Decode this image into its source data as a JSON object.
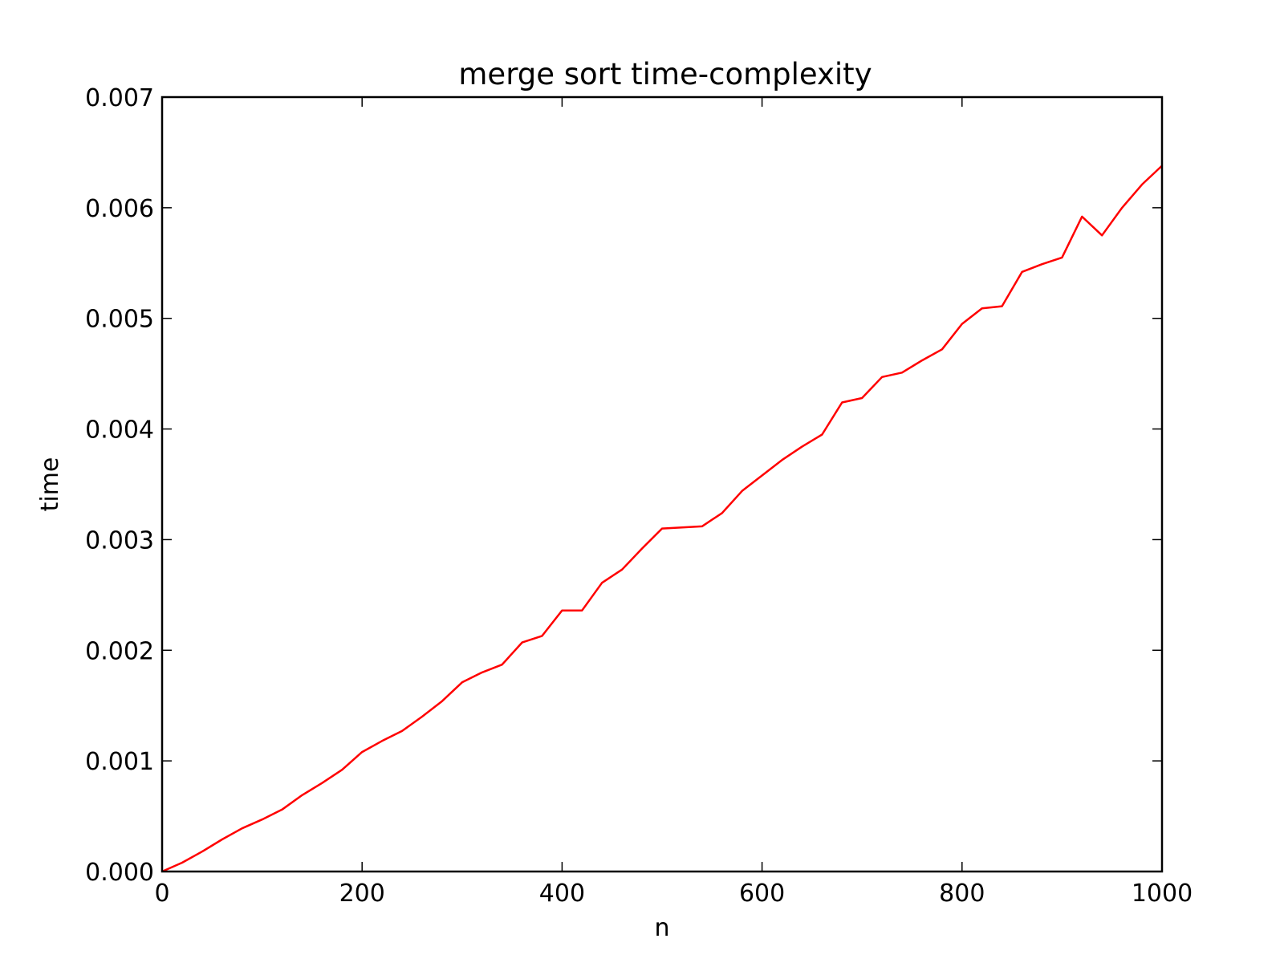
{
  "chart_data": {
    "type": "line",
    "title": "merge sort time-complexity",
    "xlabel": "n",
    "ylabel": "time",
    "xlim": [
      0,
      1000
    ],
    "ylim": [
      0,
      0.007
    ],
    "xticks": [
      0,
      200,
      400,
      600,
      800,
      1000
    ],
    "xtick_labels": [
      "0",
      "200",
      "400",
      "600",
      "800",
      "1000"
    ],
    "yticks": [
      0,
      0.001,
      0.002,
      0.003,
      0.004,
      0.005,
      0.006,
      0.007
    ],
    "ytick_labels": [
      "0.000",
      "0.001",
      "0.002",
      "0.003",
      "0.004",
      "0.005",
      "0.006",
      "0.007"
    ],
    "grid": false,
    "series": [
      {
        "color": "#ff0000",
        "x": [
          0,
          20,
          40,
          60,
          80,
          100,
          120,
          140,
          160,
          180,
          200,
          220,
          240,
          260,
          280,
          300,
          320,
          340,
          360,
          380,
          400,
          420,
          440,
          460,
          480,
          500,
          520,
          540,
          560,
          580,
          600,
          620,
          640,
          660,
          680,
          700,
          720,
          740,
          760,
          780,
          800,
          820,
          840,
          860,
          880,
          900,
          920,
          940,
          960,
          980,
          1000
        ],
        "y": [
          0.0,
          8e-05,
          0.00018,
          0.00029,
          0.00039,
          0.00047,
          0.00056,
          0.00069,
          0.0008,
          0.00092,
          0.00108,
          0.00118,
          0.00127,
          0.0014,
          0.00154,
          0.00171,
          0.0018,
          0.00187,
          0.00207,
          0.00213,
          0.00236,
          0.00236,
          0.00261,
          0.00273,
          0.00292,
          0.0031,
          0.00311,
          0.00312,
          0.00324,
          0.00344,
          0.00358,
          0.00372,
          0.00384,
          0.00395,
          0.00424,
          0.00428,
          0.00447,
          0.00451,
          0.00462,
          0.00472,
          0.00495,
          0.00509,
          0.00511,
          0.00542,
          0.00549,
          0.00555,
          0.00592,
          0.00575,
          0.006,
          0.00621,
          0.00638
        ]
      }
    ]
  }
}
